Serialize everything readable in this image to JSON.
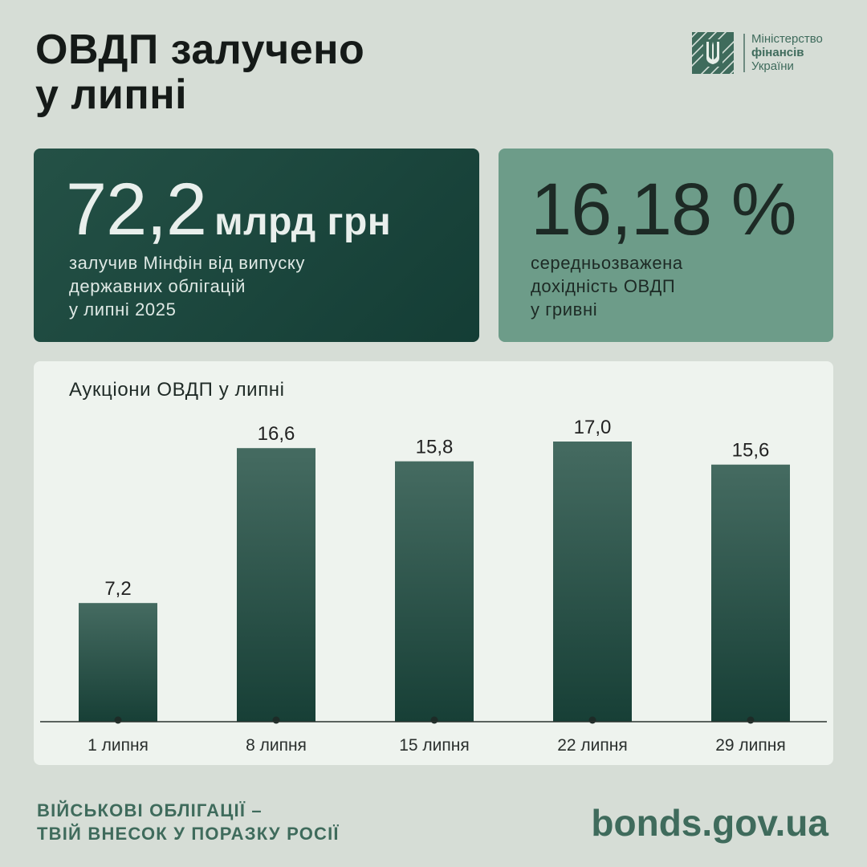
{
  "header": {
    "title_line1": "ОВДП залучено",
    "title_line2": "у липні"
  },
  "logo": {
    "line1": "Міністерство",
    "line2": "фінансів",
    "line3": "України",
    "icon": "trident-icon"
  },
  "card_left": {
    "value": "72,2",
    "unit": "млрд грн",
    "desc1": "залучив Мінфін від випуску",
    "desc2": "державних облігацій",
    "desc3": "у липні 2025"
  },
  "card_right": {
    "value": "16,18 %",
    "desc1": "середньозважена",
    "desc2": "дохідність ОВДП",
    "desc3": "у гривні"
  },
  "chart_data": {
    "type": "bar",
    "title": "Аукціони ОВДП у липні",
    "categories": [
      "1 липня",
      "8 липня",
      "15 липня",
      "22 липня",
      "29 липня"
    ],
    "values": [
      7.2,
      16.6,
      15.8,
      17.0,
      15.6
    ],
    "value_labels": [
      "7,2",
      "16,6",
      "15,8",
      "17,0",
      "15,6"
    ],
    "ylim": [
      0,
      17.0
    ],
    "grid": false,
    "bar_color_top": "#456b61",
    "bar_color_bottom": "#173f36"
  },
  "footer": {
    "slogan1": "ВІЙСЬКОВІ ОБЛІГАЦІЇ –",
    "slogan2": "ТВІЙ ВНЕСОК У ПОРАЗКУ РОСІЇ",
    "url": "bonds.gov.ua"
  },
  "colors": {
    "background": "#d6ddd6",
    "brand_green": "#3f6b5c",
    "card_dark": "#173f36",
    "card_light": "#6d9c89"
  }
}
